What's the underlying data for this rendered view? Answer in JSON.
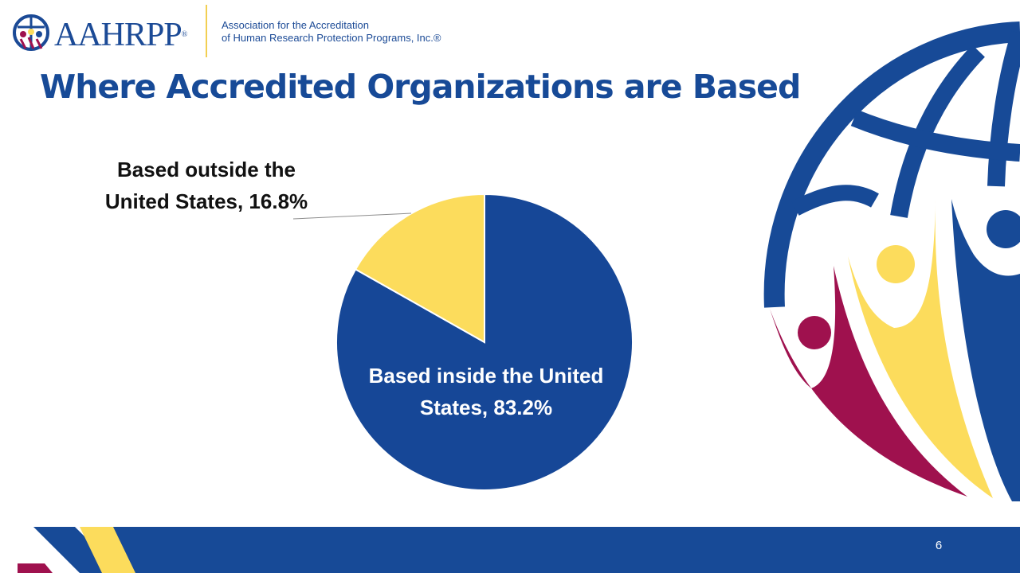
{
  "header": {
    "logo_text": "AAHRPP",
    "logo_registered": "®",
    "tagline_line1": "Association for the Accreditation",
    "tagline_line2": "of Human Research Protection Programs, Inc.®"
  },
  "slide": {
    "title": "Where Accredited Organizations are Based",
    "page_number": "6"
  },
  "colors": {
    "blue": "#164797",
    "yellow": "#fcdc5c",
    "maroon": "#9f114e"
  },
  "chart_data": {
    "type": "pie",
    "title": "",
    "slices": [
      {
        "label": "Based inside the United States",
        "value": 83.2,
        "display": "83.2%",
        "label_line1": "Based inside the United",
        "label_line2": "States, 83.2%",
        "color": "#164797"
      },
      {
        "label": "Based outside the United States",
        "value": 16.8,
        "display": "16.8%",
        "label_line1": "Based outside the",
        "label_line2": "United States, 16.8%",
        "color": "#fcdc5c"
      }
    ],
    "legend": "none"
  }
}
